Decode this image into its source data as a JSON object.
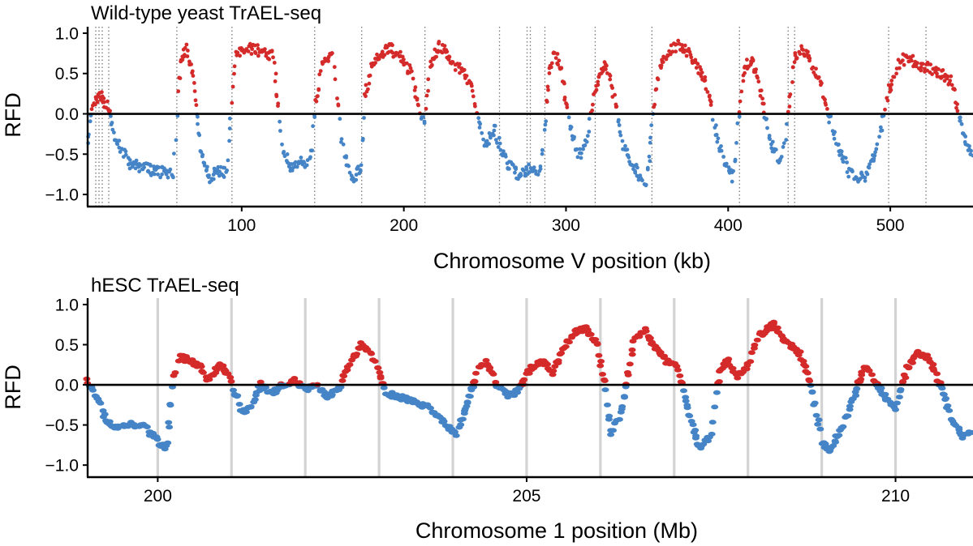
{
  "chart_data": [
    {
      "type": "scatter",
      "title": "Wild-type yeast TrAEL-seq",
      "xlabel": "Chromosome V position (kb)",
      "ylabel": "RFD",
      "xlim": [
        5,
        551
      ],
      "ylim": [
        -1.15,
        1.08
      ],
      "xticks": [
        100,
        200,
        300,
        400,
        500
      ],
      "xtick_labels": [
        "100",
        "200",
        "300",
        "400",
        "500"
      ],
      "yticks": [
        1.0,
        0.5,
        0.0,
        -0.5,
        -1.0
      ],
      "ytick_labels": [
        "1.0",
        "0.5",
        "0.0",
        "−0.5",
        "−1.0"
      ],
      "reference_line_y": 0,
      "origin_lines": {
        "style": "dotted",
        "color": "#777777",
        "x": [
          10,
          12,
          14,
          18,
          60,
          94,
          145,
          174,
          213,
          259,
          276,
          278,
          287,
          318,
          353,
          407,
          437,
          441,
          499,
          522
        ]
      },
      "colors": {
        "positive": "#d42a2a",
        "negative": "#4584c6",
        "zero_line": "#000000"
      },
      "series": [
        {
          "name": "RFD profile (red where RFD > 0, blue where RFD < 0)",
          "x": [
            5,
            8,
            11,
            14,
            17,
            22,
            30,
            45,
            58,
            61,
            63,
            66,
            70,
            75,
            80,
            86,
            91,
            94,
            96,
            100,
            108,
            115,
            120,
            122,
            125,
            130,
            135,
            140,
            143,
            146,
            150,
            156,
            158,
            161,
            165,
            170,
            174,
            176,
            180,
            185,
            192,
            198,
            205,
            210,
            213,
            216,
            222,
            228,
            235,
            242,
            250,
            256,
            260,
            265,
            270,
            275,
            280,
            284,
            287,
            290,
            293,
            297,
            302,
            308,
            313,
            318,
            321,
            325,
            330,
            335,
            340,
            345,
            350,
            354,
            358,
            362,
            368,
            375,
            381,
            388,
            393,
            398,
            403,
            407,
            410,
            415,
            419,
            424,
            429,
            432,
            435,
            438,
            441,
            443,
            447,
            452,
            457,
            462,
            468,
            474,
            480,
            486,
            492,
            496,
            500,
            504,
            510,
            518,
            526,
            532,
            538,
            542,
            546,
            551
          ],
          "y": [
            -0.3,
            0.1,
            0.2,
            0.2,
            0.1,
            -0.3,
            -0.6,
            -0.7,
            -0.75,
            0.3,
            0.7,
            0.8,
            0.5,
            -0.5,
            -0.8,
            -0.7,
            -0.75,
            0.2,
            0.7,
            0.8,
            0.8,
            0.75,
            0.7,
            0.2,
            -0.4,
            -0.65,
            -0.6,
            -0.65,
            -0.5,
            0.2,
            0.65,
            0.75,
            0.4,
            -0.3,
            -0.65,
            -0.8,
            -0.6,
            0.2,
            0.55,
            0.75,
            0.8,
            0.7,
            0.5,
            0.0,
            -0.1,
            0.6,
            0.85,
            0.7,
            0.55,
            0.3,
            -0.4,
            -0.2,
            -0.45,
            -0.65,
            -0.75,
            -0.7,
            -0.68,
            -0.7,
            -0.2,
            0.6,
            0.78,
            0.55,
            -0.1,
            -0.55,
            -0.3,
            0.3,
            0.55,
            0.6,
            0.2,
            -0.4,
            -0.6,
            -0.75,
            -0.85,
            0.1,
            0.6,
            0.75,
            0.85,
            0.78,
            0.6,
            0.3,
            -0.3,
            -0.6,
            -0.8,
            0.1,
            0.6,
            0.65,
            0.4,
            -0.2,
            -0.5,
            -0.55,
            -0.4,
            0.2,
            0.7,
            0.75,
            0.8,
            0.6,
            0.4,
            0.0,
            -0.4,
            -0.7,
            -0.8,
            -0.75,
            -0.4,
            0.0,
            0.35,
            0.6,
            0.7,
            0.6,
            0.55,
            0.5,
            0.4,
            0.0,
            -0.3,
            -0.5
          ]
        }
      ]
    },
    {
      "type": "scatter",
      "title": "hESC TrAEL-seq",
      "xlabel": "Chromosome 1 position (Mb)",
      "ylabel": "RFD",
      "xlim": [
        199.05,
        211.05
      ],
      "ylim": [
        -1.15,
        1.08
      ],
      "xticks": [
        200,
        205,
        210
      ],
      "xtick_labels": [
        "200",
        "205",
        "210"
      ],
      "yticks": [
        1.0,
        0.5,
        0.0,
        -0.5,
        -1.0
      ],
      "ytick_labels": [
        "1.0",
        "0.5",
        "0.0",
        "−0.5",
        "−1.0"
      ],
      "reference_line_y": 0,
      "origin_lines": {
        "style": "solid",
        "color": "#d3d3d3",
        "x": [
          200,
          201,
          202,
          203,
          204,
          205,
          206,
          207,
          208,
          209,
          210
        ]
      },
      "colors": {
        "positive": "#d42a2a",
        "negative": "#4584c6",
        "zero_line": "#000000"
      },
      "series": [
        {
          "name": "RFD profile (red where RFD > 0, blue where RFD < 0)",
          "x": [
            199.05,
            199.12,
            199.2,
            199.3,
            199.45,
            199.6,
            199.8,
            200.0,
            200.12,
            200.2,
            200.3,
            200.45,
            200.6,
            200.7,
            200.82,
            200.95,
            201.05,
            201.15,
            201.28,
            201.4,
            201.55,
            201.7,
            201.85,
            202.0,
            202.15,
            202.3,
            202.45,
            202.6,
            202.75,
            202.9,
            203.0,
            203.1,
            203.25,
            203.45,
            203.7,
            203.9,
            204.05,
            204.2,
            204.35,
            204.45,
            204.6,
            204.75,
            204.9,
            205.05,
            205.2,
            205.35,
            205.5,
            205.65,
            205.8,
            205.95,
            206.08,
            206.15,
            206.3,
            206.45,
            206.6,
            206.75,
            206.9,
            207.05,
            207.18,
            207.35,
            207.5,
            207.62,
            207.72,
            207.85,
            208.0,
            208.15,
            208.35,
            208.5,
            208.7,
            208.85,
            209.0,
            209.1,
            209.3,
            209.45,
            209.6,
            209.75,
            209.9,
            210.0,
            210.15,
            210.3,
            210.45,
            210.6,
            210.75,
            210.9,
            211.05
          ],
          "y": [
            0.05,
            -0.05,
            -0.2,
            -0.45,
            -0.55,
            -0.5,
            -0.5,
            -0.7,
            -0.8,
            0.0,
            0.35,
            0.3,
            0.2,
            0.05,
            0.25,
            0.15,
            -0.1,
            -0.35,
            -0.25,
            0.0,
            -0.1,
            0.0,
            0.05,
            -0.05,
            0.0,
            -0.15,
            -0.05,
            0.25,
            0.5,
            0.4,
            0.15,
            -0.1,
            -0.15,
            -0.2,
            -0.3,
            -0.5,
            -0.6,
            -0.2,
            0.2,
            0.3,
            0.0,
            -0.15,
            -0.05,
            0.2,
            0.3,
            0.15,
            0.45,
            0.65,
            0.7,
            0.5,
            -0.1,
            -0.6,
            -0.3,
            0.55,
            0.7,
            0.45,
            0.3,
            0.2,
            -0.3,
            -0.8,
            -0.6,
            0.15,
            0.3,
            0.1,
            0.25,
            0.6,
            0.75,
            0.55,
            0.4,
            0.0,
            -0.7,
            -0.8,
            -0.5,
            -0.1,
            0.25,
            0.0,
            -0.2,
            -0.3,
            0.2,
            0.4,
            0.35,
            0.0,
            -0.4,
            -0.65,
            -0.55
          ]
        }
      ]
    }
  ]
}
